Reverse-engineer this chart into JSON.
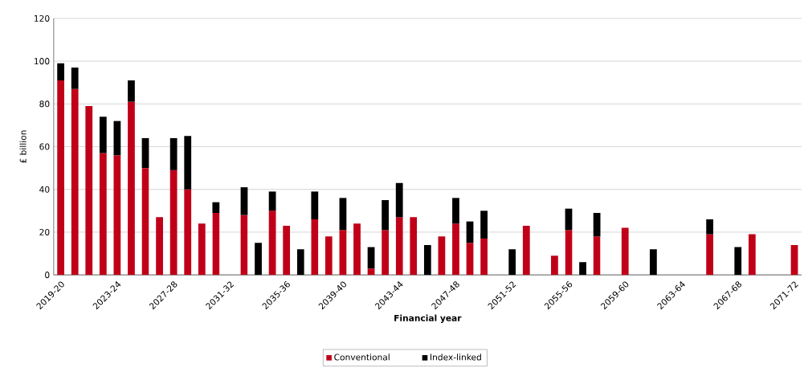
{
  "chart_data": {
    "type": "bar",
    "stacked": true,
    "xlabel": "Financial year",
    "ylabel": "£ billion",
    "categories": [
      "2019-20",
      null,
      null,
      null,
      "2023-24",
      null,
      null,
      null,
      "2027-28",
      null,
      null,
      null,
      "2031-32",
      null,
      null,
      null,
      "2035-36",
      null,
      null,
      null,
      "2039-40",
      null,
      null,
      null,
      "2043-44",
      null,
      null,
      null,
      "2047-48",
      null,
      null,
      null,
      "2051-52",
      null,
      null,
      null,
      "2055-56",
      null,
      null,
      null,
      "2059-60",
      null,
      null,
      null,
      "2063-64",
      null,
      null,
      null,
      "2067-68",
      null,
      null,
      null,
      "2071-72"
    ],
    "series": [
      {
        "name": "Conventional",
        "color": "#c00018",
        "values": [
          91,
          87,
          79,
          57,
          56,
          81,
          50,
          27,
          49,
          40,
          24,
          29,
          null,
          28,
          null,
          30,
          23,
          null,
          26,
          18,
          21,
          24,
          3,
          21,
          27,
          27,
          null,
          18,
          24,
          15,
          17,
          null,
          null,
          23,
          null,
          9,
          21,
          null,
          18,
          null,
          22,
          null,
          null,
          null,
          null,
          null,
          19,
          null,
          null,
          19,
          null,
          null,
          14
        ]
      },
      {
        "name": "Index-linked",
        "color": "#000000",
        "values": [
          8,
          10,
          null,
          17,
          16,
          10,
          14,
          null,
          15,
          25,
          null,
          5,
          null,
          13,
          15,
          9,
          null,
          12,
          13,
          null,
          15,
          null,
          10,
          14,
          16,
          null,
          14,
          null,
          12,
          10,
          13,
          null,
          12,
          null,
          null,
          null,
          10,
          6,
          11,
          null,
          null,
          null,
          12,
          null,
          null,
          null,
          7,
          null,
          13,
          null,
          null,
          null,
          null
        ]
      }
    ],
    "ylim": [
      0,
      120
    ],
    "yticks": [
      0,
      20,
      40,
      60,
      80,
      100,
      120
    ],
    "grid": "y",
    "legend": "bottom"
  }
}
